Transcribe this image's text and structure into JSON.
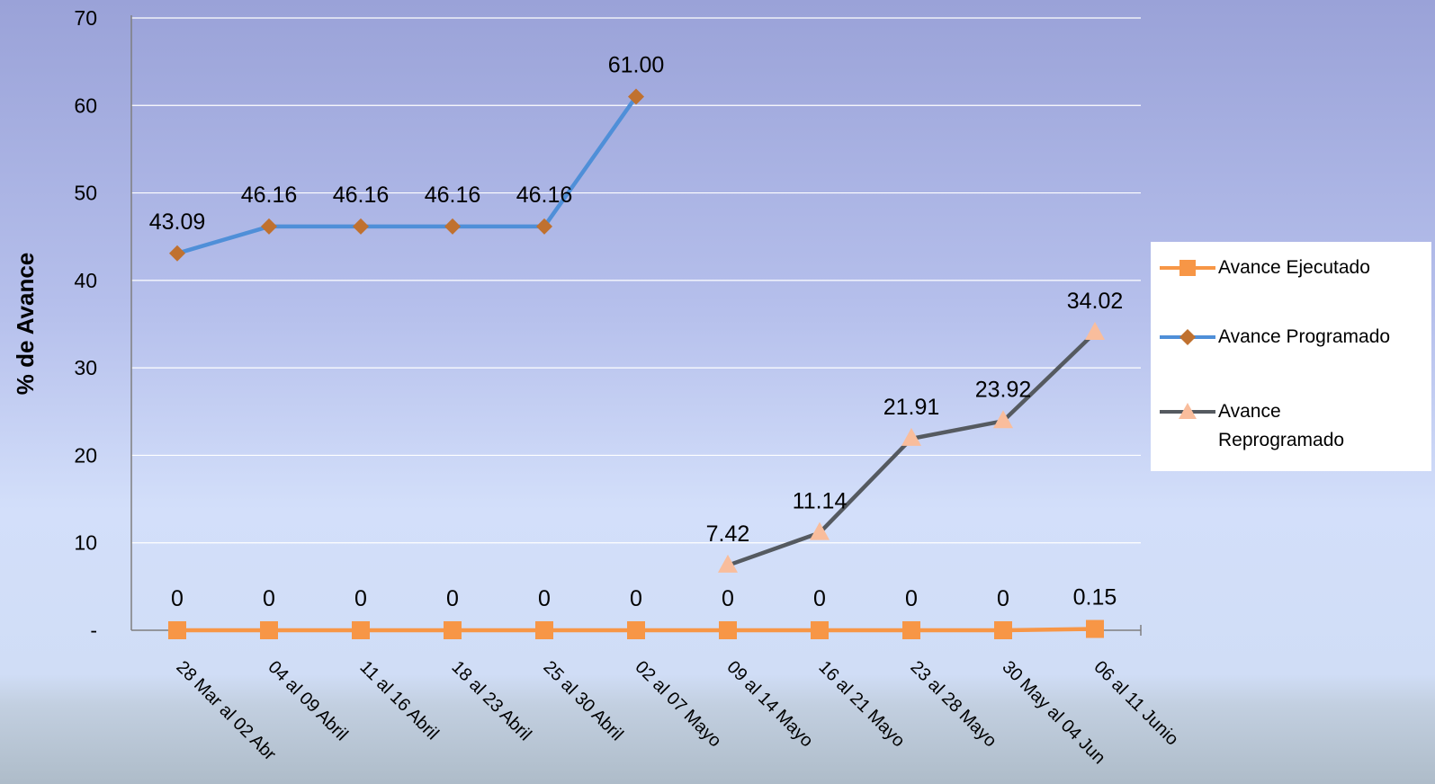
{
  "chart_data": {
    "type": "line",
    "ylabel": "% de Avance",
    "ylim": [
      0,
      70
    ],
    "yticks": [
      {
        "value": 0,
        "label": "-"
      },
      {
        "value": 10,
        "label": "10"
      },
      {
        "value": 20,
        "label": "20"
      },
      {
        "value": 30,
        "label": "30"
      },
      {
        "value": 40,
        "label": "40"
      },
      {
        "value": 50,
        "label": "50"
      },
      {
        "value": 60,
        "label": "60"
      },
      {
        "value": 70,
        "label": "70"
      }
    ],
    "categories": [
      "28 Mar al 02 Abr",
      "04 al 09 Abril",
      "11 al 16 Abril",
      "18 al 23 Abril",
      "25 al 30 Abril",
      "02 al 07 Mayo",
      "09 al 14 Mayo",
      "16 al 21 Mayo",
      "23 al 28 Mayo",
      "30 May al 04 Jun",
      "06 al 11 Junio"
    ],
    "grid": true,
    "legend_position": "right",
    "series": [
      {
        "name": "Avance Ejecutado",
        "line_color": "#f79646",
        "marker": "square",
        "marker_color": "#f79646",
        "values": [
          0,
          0,
          0,
          0,
          0,
          0,
          0,
          0,
          0,
          0,
          0.15
        ],
        "labels": [
          "0",
          "0",
          "0",
          "0",
          "0",
          "0",
          "0",
          "0",
          "0",
          "0",
          "0.15"
        ]
      },
      {
        "name": "Avance Programado",
        "line_color": "#4f8fd8",
        "marker": "diamond",
        "marker_color": "#c0712f",
        "values": [
          43.09,
          46.16,
          46.16,
          46.16,
          46.16,
          61.0,
          null,
          null,
          null,
          null,
          null
        ],
        "labels": [
          "43.09",
          "46.16",
          "46.16",
          "46.16",
          "46.16",
          "61.00",
          null,
          null,
          null,
          null,
          null
        ]
      },
      {
        "name": "Avance Reprogramado",
        "line_color": "#555a60",
        "marker": "triangle",
        "marker_color": "#f9bd9c",
        "values": [
          null,
          null,
          null,
          null,
          null,
          null,
          7.42,
          11.14,
          21.91,
          23.92,
          34.02
        ],
        "labels": [
          null,
          null,
          null,
          null,
          null,
          null,
          "7.42",
          "11.14",
          "21.91",
          "23.92",
          "34.02"
        ]
      }
    ]
  },
  "legend": {
    "items": [
      {
        "label": "Avance Ejecutado"
      },
      {
        "label": "Avance Programado"
      },
      {
        "label": "Avance Reprogramado",
        "lines": [
          "Avance",
          "Reprogramado"
        ]
      }
    ]
  }
}
